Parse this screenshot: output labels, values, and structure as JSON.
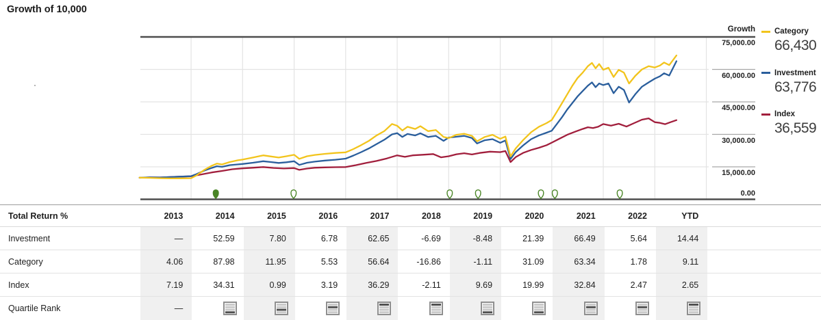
{
  "title": "Growth of 10,000",
  "axis": {
    "header": "Growth",
    "ticks": [
      {
        "value": 75000,
        "label": "75,000.00"
      },
      {
        "value": 60000,
        "label": "60,000.00"
      },
      {
        "value": 45000,
        "label": "45,000.00"
      },
      {
        "value": 30000,
        "label": "30,000.00"
      },
      {
        "value": 15000,
        "label": "15,000.00"
      },
      {
        "value": 0,
        "label": "0.00"
      }
    ]
  },
  "legend": [
    {
      "label": "Category",
      "value": "66,430",
      "color": "#f2c41c"
    },
    {
      "label": "Investment",
      "value": "63,776",
      "color": "#2a5e9c"
    },
    {
      "label": "Index",
      "value": "36,559",
      "color": "#a11e3c"
    }
  ],
  "colors": {
    "grid_light": "#e3e3e3",
    "line_dark": "#4d4d4d",
    "tick_line": "#a6a6a6",
    "event_green": "#4a8526",
    "shade": "#f0f0f0"
  },
  "chart_data": {
    "type": "line",
    "title": "Growth of 10,000",
    "ylabel": "Growth",
    "ylim": [
      0,
      78750
    ],
    "yticks": [
      0,
      15000,
      30000,
      45000,
      60000,
      75000
    ],
    "x_range": [
      2013.0,
      2023.42
    ],
    "x_gridline_years": [
      2014,
      2015,
      2016,
      2017,
      2018,
      2019,
      2020,
      2021,
      2022,
      2023,
      2024
    ],
    "grid": true,
    "legend_position": "right",
    "series": [
      {
        "name": "Index",
        "color": "#a11e3c",
        "final_value": 36559,
        "points": [
          [
            2013.0,
            9950
          ],
          [
            2013.2,
            10150
          ],
          [
            2013.4,
            10100
          ],
          [
            2013.6,
            10300
          ],
          [
            2013.8,
            10500
          ],
          [
            2014.0,
            10645
          ],
          [
            2014.2,
            11500
          ],
          [
            2014.4,
            12400
          ],
          [
            2014.6,
            13100
          ],
          [
            2014.8,
            13900
          ],
          [
            2015.0,
            14297
          ],
          [
            2015.2,
            14600
          ],
          [
            2015.4,
            14900
          ],
          [
            2015.6,
            14500
          ],
          [
            2015.8,
            14250
          ],
          [
            2016.0,
            14439
          ],
          [
            2016.1,
            13600
          ],
          [
            2016.25,
            14200
          ],
          [
            2016.4,
            14600
          ],
          [
            2016.6,
            14750
          ],
          [
            2016.8,
            14850
          ],
          [
            2017.0,
            14900
          ],
          [
            2017.2,
            15800
          ],
          [
            2017.4,
            16800
          ],
          [
            2017.6,
            17700
          ],
          [
            2017.8,
            18900
          ],
          [
            2018.0,
            20307
          ],
          [
            2018.15,
            19600
          ],
          [
            2018.3,
            20300
          ],
          [
            2018.5,
            20600
          ],
          [
            2018.7,
            20900
          ],
          [
            2018.85,
            19400
          ],
          [
            2019.0,
            19879
          ],
          [
            2019.15,
            20800
          ],
          [
            2019.3,
            21300
          ],
          [
            2019.45,
            20700
          ],
          [
            2019.6,
            21400
          ],
          [
            2019.8,
            22000
          ],
          [
            2020.0,
            21805
          ],
          [
            2020.1,
            22300
          ],
          [
            2020.2,
            17200
          ],
          [
            2020.3,
            19500
          ],
          [
            2020.45,
            21500
          ],
          [
            2020.6,
            22800
          ],
          [
            2020.75,
            23800
          ],
          [
            2020.9,
            25000
          ],
          [
            2021.0,
            26164
          ],
          [
            2021.15,
            28000
          ],
          [
            2021.3,
            29800
          ],
          [
            2021.45,
            31200
          ],
          [
            2021.6,
            32500
          ],
          [
            2021.7,
            33300
          ],
          [
            2021.8,
            32900
          ],
          [
            2021.9,
            33500
          ],
          [
            2022.0,
            34757
          ],
          [
            2022.15,
            34000
          ],
          [
            2022.3,
            34900
          ],
          [
            2022.45,
            33600
          ],
          [
            2022.6,
            35200
          ],
          [
            2022.75,
            36800
          ],
          [
            2022.88,
            37400
          ],
          [
            2023.0,
            35615
          ],
          [
            2023.1,
            35300
          ],
          [
            2023.2,
            34700
          ],
          [
            2023.3,
            35600
          ],
          [
            2023.42,
            36559
          ]
        ]
      },
      {
        "name": "Investment",
        "color": "#2a5e9c",
        "final_value": 63776,
        "points": [
          [
            2013.0,
            10000
          ],
          [
            2013.2,
            10150
          ],
          [
            2013.4,
            10100
          ],
          [
            2013.6,
            10300
          ],
          [
            2013.8,
            10500
          ],
          [
            2014.0,
            10700
          ],
          [
            2014.1,
            11600
          ],
          [
            2014.25,
            13200
          ],
          [
            2014.4,
            14500
          ],
          [
            2014.5,
            15300
          ],
          [
            2014.6,
            15000
          ],
          [
            2014.75,
            15800
          ],
          [
            2014.9,
            16100
          ],
          [
            2015.0,
            16326
          ],
          [
            2015.2,
            16900
          ],
          [
            2015.4,
            17600
          ],
          [
            2015.55,
            17200
          ],
          [
            2015.7,
            16800
          ],
          [
            2015.85,
            17100
          ],
          [
            2016.0,
            17599
          ],
          [
            2016.1,
            15900
          ],
          [
            2016.25,
            16900
          ],
          [
            2016.4,
            17400
          ],
          [
            2016.6,
            17900
          ],
          [
            2016.8,
            18300
          ],
          [
            2017.0,
            18792
          ],
          [
            2017.15,
            20200
          ],
          [
            2017.3,
            21800
          ],
          [
            2017.45,
            23500
          ],
          [
            2017.6,
            25500
          ],
          [
            2017.75,
            27500
          ],
          [
            2017.9,
            30000
          ],
          [
            2018.0,
            30566
          ],
          [
            2018.1,
            28800
          ],
          [
            2018.2,
            30200
          ],
          [
            2018.35,
            29500
          ],
          [
            2018.45,
            30500
          ],
          [
            2018.6,
            28800
          ],
          [
            2018.75,
            29300
          ],
          [
            2018.9,
            27000
          ],
          [
            2019.0,
            28521
          ],
          [
            2019.15,
            28900
          ],
          [
            2019.3,
            29300
          ],
          [
            2019.45,
            28300
          ],
          [
            2019.55,
            25800
          ],
          [
            2019.7,
            27300
          ],
          [
            2019.85,
            27800
          ],
          [
            2020.0,
            26103
          ],
          [
            2020.1,
            27200
          ],
          [
            2020.2,
            18600
          ],
          [
            2020.3,
            21800
          ],
          [
            2020.45,
            25000
          ],
          [
            2020.6,
            27800
          ],
          [
            2020.75,
            29500
          ],
          [
            2020.9,
            30800
          ],
          [
            2021.0,
            31687
          ],
          [
            2021.1,
            34800
          ],
          [
            2021.2,
            38000
          ],
          [
            2021.3,
            41500
          ],
          [
            2021.4,
            44500
          ],
          [
            2021.5,
            47500
          ],
          [
            2021.6,
            50000
          ],
          [
            2021.7,
            52500
          ],
          [
            2021.78,
            54000
          ],
          [
            2021.85,
            51800
          ],
          [
            2021.92,
            53500
          ],
          [
            2022.0,
            52755
          ],
          [
            2022.1,
            53500
          ],
          [
            2022.2,
            49000
          ],
          [
            2022.3,
            52000
          ],
          [
            2022.4,
            50500
          ],
          [
            2022.5,
            44700
          ],
          [
            2022.62,
            48500
          ],
          [
            2022.75,
            52000
          ],
          [
            2022.88,
            54000
          ],
          [
            2023.0,
            55730
          ],
          [
            2023.1,
            56800
          ],
          [
            2023.18,
            58200
          ],
          [
            2023.28,
            57200
          ],
          [
            2023.42,
            63776
          ]
        ]
      },
      {
        "name": "Category",
        "color": "#f2c41c",
        "final_value": 66430,
        "points": [
          [
            2013.0,
            10000
          ],
          [
            2013.2,
            9900
          ],
          [
            2013.4,
            9750
          ],
          [
            2013.6,
            9650
          ],
          [
            2013.8,
            9700
          ],
          [
            2014.0,
            9768
          ],
          [
            2014.1,
            11000
          ],
          [
            2014.25,
            13500
          ],
          [
            2014.4,
            15500
          ],
          [
            2014.5,
            16500
          ],
          [
            2014.6,
            16100
          ],
          [
            2014.75,
            17200
          ],
          [
            2014.9,
            18000
          ],
          [
            2015.0,
            18363
          ],
          [
            2015.2,
            19300
          ],
          [
            2015.4,
            20300
          ],
          [
            2015.55,
            19800
          ],
          [
            2015.7,
            19300
          ],
          [
            2015.85,
            19900
          ],
          [
            2016.0,
            20557
          ],
          [
            2016.1,
            18700
          ],
          [
            2016.25,
            19900
          ],
          [
            2016.4,
            20500
          ],
          [
            2016.6,
            21000
          ],
          [
            2016.8,
            21400
          ],
          [
            2017.0,
            21694
          ],
          [
            2017.15,
            23200
          ],
          [
            2017.3,
            25000
          ],
          [
            2017.45,
            27000
          ],
          [
            2017.6,
            29500
          ],
          [
            2017.75,
            31500
          ],
          [
            2017.9,
            34800
          ],
          [
            2018.0,
            33980
          ],
          [
            2018.1,
            31800
          ],
          [
            2018.2,
            33500
          ],
          [
            2018.35,
            32500
          ],
          [
            2018.45,
            33800
          ],
          [
            2018.6,
            31500
          ],
          [
            2018.75,
            32000
          ],
          [
            2018.9,
            28800
          ],
          [
            2019.0,
            28250
          ],
          [
            2019.15,
            29800
          ],
          [
            2019.3,
            30300
          ],
          [
            2019.45,
            29300
          ],
          [
            2019.55,
            26800
          ],
          [
            2019.7,
            28800
          ],
          [
            2019.85,
            29800
          ],
          [
            2020.0,
            27937
          ],
          [
            2020.1,
            29000
          ],
          [
            2020.2,
            19800
          ],
          [
            2020.3,
            23500
          ],
          [
            2020.45,
            27500
          ],
          [
            2020.6,
            31000
          ],
          [
            2020.75,
            33500
          ],
          [
            2020.9,
            35200
          ],
          [
            2021.0,
            36623
          ],
          [
            2021.1,
            40500
          ],
          [
            2021.2,
            44500
          ],
          [
            2021.3,
            48500
          ],
          [
            2021.4,
            52500
          ],
          [
            2021.5,
            56000
          ],
          [
            2021.6,
            58500
          ],
          [
            2021.7,
            61500
          ],
          [
            2021.78,
            63000
          ],
          [
            2021.85,
            60500
          ],
          [
            2021.92,
            62500
          ],
          [
            2022.0,
            59819
          ],
          [
            2022.1,
            60800
          ],
          [
            2022.2,
            56500
          ],
          [
            2022.3,
            59800
          ],
          [
            2022.4,
            58500
          ],
          [
            2022.5,
            53500
          ],
          [
            2022.62,
            57000
          ],
          [
            2022.75,
            60000
          ],
          [
            2022.88,
            61500
          ],
          [
            2023.0,
            60884
          ],
          [
            2023.1,
            61800
          ],
          [
            2023.18,
            63200
          ],
          [
            2023.28,
            62000
          ],
          [
            2023.42,
            66430
          ]
        ]
      }
    ],
    "events": [
      {
        "type": "filled",
        "x": 2014.48
      },
      {
        "type": "open",
        "x": 2015.99
      },
      {
        "type": "open",
        "x": 2019.02
      },
      {
        "type": "open",
        "x": 2019.57
      },
      {
        "type": "open",
        "x": 2020.79
      },
      {
        "type": "open",
        "x": 2021.06
      },
      {
        "type": "open",
        "x": 2022.32
      }
    ]
  },
  "table": {
    "header": {
      "label": "Total Return %",
      "cols": [
        "2013",
        "2014",
        "2015",
        "2016",
        "2017",
        "2018",
        "2019",
        "2020",
        "2021",
        "2022",
        "YTD"
      ]
    },
    "rows": [
      {
        "label": "Investment",
        "values": [
          "—",
          "52.59",
          "7.80",
          "6.78",
          "62.65",
          "-6.69",
          "-8.48",
          "21.39",
          "66.49",
          "5.64",
          "14.44"
        ]
      },
      {
        "label": "Category",
        "values": [
          "4.06",
          "87.98",
          "11.95",
          "5.53",
          "56.64",
          "-16.86",
          "-1.11",
          "31.09",
          "63.34",
          "1.78",
          "9.11"
        ]
      },
      {
        "label": "Index",
        "values": [
          "7.19",
          "34.31",
          "0.99",
          "3.19",
          "36.29",
          "-2.11",
          "9.69",
          "19.99",
          "32.84",
          "2.47",
          "2.65"
        ]
      }
    ],
    "quartile_row": {
      "label": "Quartile Rank",
      "no_data": "—",
      "ranks": [
        null,
        4,
        3,
        2,
        1,
        1,
        4,
        4,
        2,
        2,
        1
      ]
    }
  }
}
